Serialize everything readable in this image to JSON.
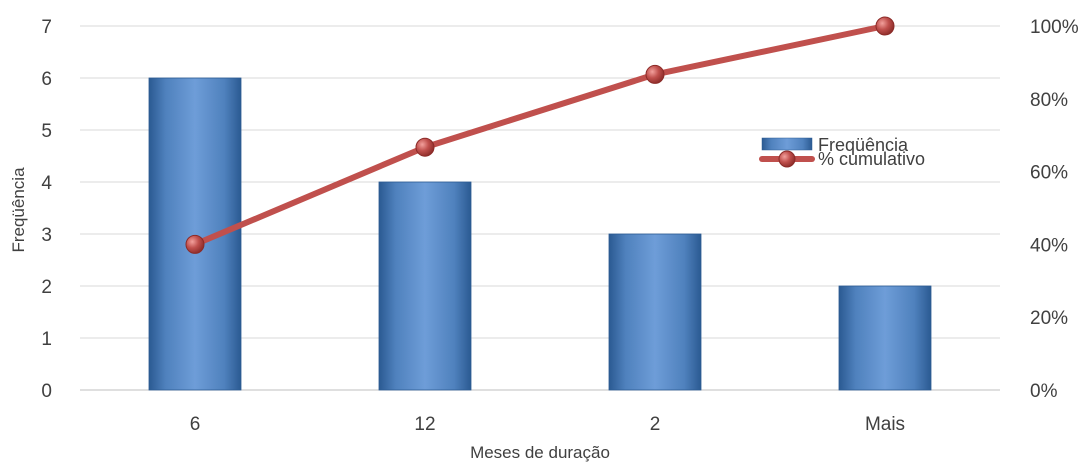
{
  "chart_data": {
    "type": "bar",
    "categories": [
      "6",
      "12",
      "2",
      "Mais"
    ],
    "series": [
      {
        "name": "Freqüência",
        "type": "bar",
        "axis": "left",
        "values": [
          6,
          4,
          3,
          2
        ],
        "color": "#4F81BD"
      },
      {
        "name": "% cumulativo",
        "type": "line",
        "axis": "right",
        "values": [
          40,
          66.7,
          86.7,
          100
        ],
        "color": "#C0504D"
      }
    ],
    "xlabel": "Meses de duração",
    "ylabel": "Freqüência",
    "ylim": [
      0,
      7
    ],
    "yticks": [
      "0",
      "1",
      "2",
      "3",
      "4",
      "5",
      "6",
      "7"
    ],
    "y2lim": [
      0,
      100
    ],
    "y2ticks": [
      "0%",
      "20%",
      "40%",
      "60%",
      "80%",
      "100%"
    ],
    "grid": true,
    "legend_position": "right"
  }
}
